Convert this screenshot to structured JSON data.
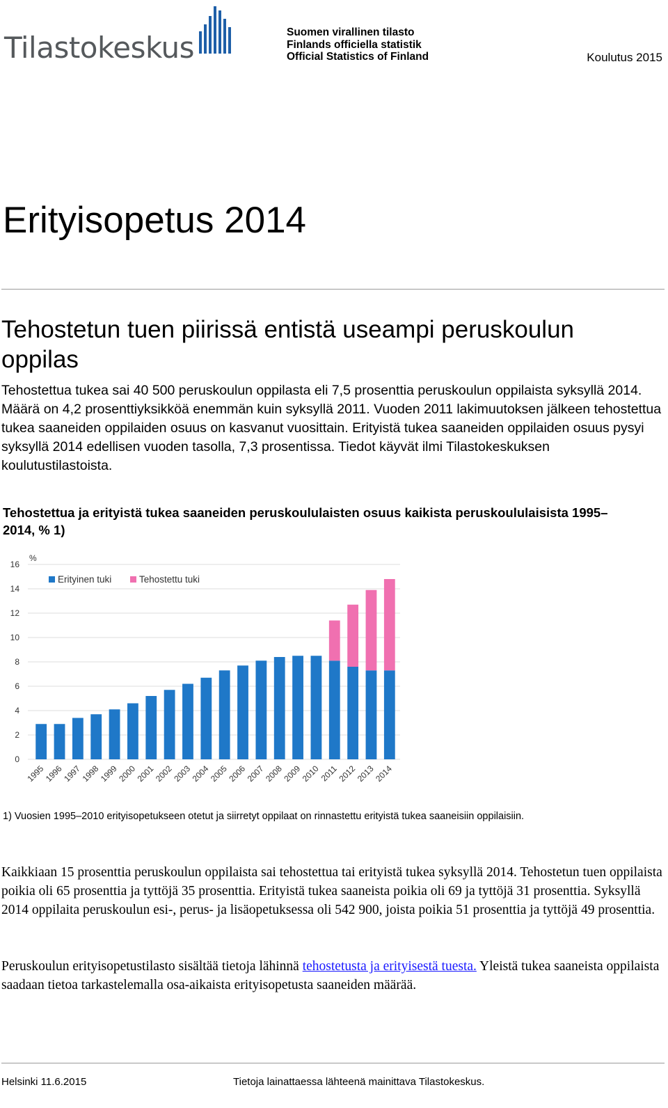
{
  "header": {
    "logo_text": "Tilastokeskus",
    "official_lines": [
      "Suomen virallinen tilasto",
      "Finlands officiella statistik",
      "Official Statistics of Finland"
    ],
    "publication": "Koulutus 2015"
  },
  "title": "Erityisopetus 2014",
  "subheading": "Tehostetun tuen piirissä entistä useampi peruskoulun oppilas",
  "lead": "Tehostettua tukea sai 40 500 peruskoulun oppilasta eli 7,5 prosenttia peruskoulun oppilaista syksyllä 2014. Määrä on 4,2 prosenttiyksikköä enemmän kuin syksyllä 2011. Vuoden 2011 lakimuutoksen jälkeen tehostettua tukea saaneiden oppilaiden osuus on kasvanut vuosittain. Erityistä tukea saaneiden oppilaiden osuus pysyi syksyllä 2014 edellisen vuoden tasolla, 7,3 prosentissa. Tiedot käyvät ilmi Tilastokeskuksen koulutustilastoista.",
  "chart_title": "Tehostettua ja erityistä tukea saaneiden peruskoululaisten osuus kaikista peruskoululaisista 1995–2014, % 1)",
  "chart_data": {
    "type": "bar",
    "stacked": true,
    "unit_label": "%",
    "categories": [
      "1995",
      "1996",
      "1997",
      "1998",
      "1999",
      "2000",
      "2001",
      "2002",
      "2003",
      "2004",
      "2005",
      "2006",
      "2007",
      "2008",
      "2009",
      "2010",
      "2011",
      "2012",
      "2013",
      "2014"
    ],
    "series": [
      {
        "name": "Erityinen tuki",
        "color": "#1f78c8",
        "values": [
          2.9,
          2.9,
          3.4,
          3.7,
          4.1,
          4.6,
          5.2,
          5.7,
          6.2,
          6.7,
          7.3,
          7.7,
          8.1,
          8.4,
          8.5,
          8.5,
          8.1,
          7.6,
          7.3,
          7.3
        ]
      },
      {
        "name": "Tehostettu tuki",
        "color": "#f070b0",
        "values": [
          0,
          0,
          0,
          0,
          0,
          0,
          0,
          0,
          0,
          0,
          0,
          0,
          0,
          0,
          0,
          0,
          3.3,
          5.1,
          6.6,
          7.5
        ]
      }
    ],
    "ylim": [
      0,
      16
    ],
    "yticks": [
      0,
      2,
      4,
      6,
      8,
      10,
      12,
      14,
      16
    ],
    "legend": "top-left",
    "grid": true
  },
  "footnote": "1) Vuosien 1995–2010 erityisopetukseen otetut ja siirretyt oppilaat on rinnastettu erityistä tukea saaneisiin oppilaisiin.",
  "paragraph1": "Kaikkiaan 15 prosenttia peruskoulun oppilaista sai tehostettua tai erityistä tukea syksyllä 2014. Tehostetun tuen oppilaista poikia oli 65 prosenttia ja tyttöjä 35 prosenttia. Erityistä tukea saaneista poikia oli 69 ja tyttöjä 31 prosenttia. Syksyllä 2014 oppilaita peruskoulun esi-, perus- ja lisäopetuksessa oli 542 900, joista poikia 51 prosenttia ja tyttöjä 49 prosenttia.",
  "paragraph2": {
    "before": "Peruskoulun erityisopetustilasto sisältää tietoja lähinnä ",
    "link": "tehostetusta ja erityisestä tuesta.",
    "after": " Yleistä tukea saaneista oppilaista saadaan tietoa tarkastelemalla osa-aikaista erityisopetusta saaneiden määrää."
  },
  "footer": {
    "left": "Helsinki 11.6.2015",
    "right": "Tietoja lainattaessa lähteenä mainittava Tilastokeskus."
  }
}
